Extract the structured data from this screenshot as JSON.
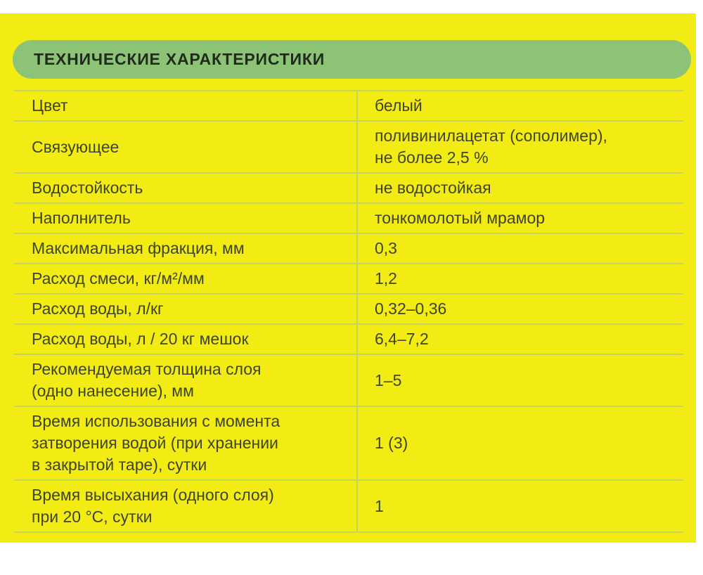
{
  "colors": {
    "page_background": "#ffffff",
    "card_background": "#f2ec14",
    "header_background": "#8dc377",
    "header_text": "#212b1c",
    "body_text": "#3f4424",
    "grid_line": "#c3d55e"
  },
  "header": {
    "title": "ТЕХНИЧЕСКИЕ ХАРАКТЕРИСТИКИ"
  },
  "table": {
    "rows": [
      {
        "label": "Цвет",
        "value": "белый"
      },
      {
        "label": "Связующее",
        "value": "поливинилацетат (сополимер),\nне более 2,5 %"
      },
      {
        "label": "Водостойкость",
        "value": "не водостойкая"
      },
      {
        "label": "Наполнитель",
        "value": "тонкомолотый мрамор"
      },
      {
        "label": "Максимальная фракция, мм",
        "value": "0,3"
      },
      {
        "label": "Расход смеси, кг/м²/мм",
        "value": "1,2"
      },
      {
        "label": "Расход воды, л/кг",
        "value": "0,32–0,36"
      },
      {
        "label": "Расход воды, л / 20 кг мешок",
        "value": "6,4–7,2"
      },
      {
        "label": "Рекомендуемая толщина слоя\n(одно нанесение), мм",
        "value": "1–5"
      },
      {
        "label": "Время использования с момента\nзатворения водой (при хранении\nв закрытой таре), сутки",
        "value": "1 (3)"
      },
      {
        "label": "Время высыхания (одного слоя)\nпри 20 °C, сутки",
        "value": "1"
      }
    ]
  }
}
